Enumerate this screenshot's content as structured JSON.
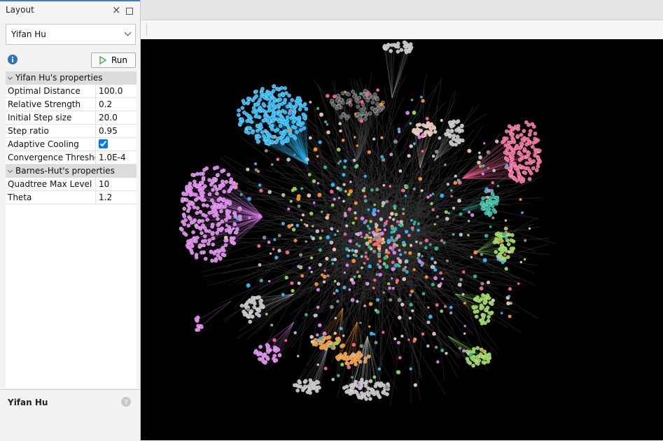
{
  "panel": {
    "title": "Layout",
    "algorithm": "Yifan Hu",
    "run_button": "Run",
    "sections": [
      {
        "title": "Yifan Hu's properties",
        "rows": [
          [
            "Optimal Distance",
            "100.0"
          ],
          [
            "Relative Strength",
            "0.2"
          ],
          [
            "Initial Step size",
            "20.0"
          ],
          [
            "Step ratio",
            "0.95"
          ],
          [
            "Adaptive Cooling",
            true
          ],
          [
            "Convergence Threshold",
            "1.0E-4"
          ]
        ]
      },
      {
        "title": "Barnes-Hut's properties",
        "rows": [
          [
            "Quadtree Max Level",
            "10"
          ],
          [
            "Theta",
            "1.2"
          ]
        ]
      }
    ],
    "footer": "Yifan Hu"
  }
}
